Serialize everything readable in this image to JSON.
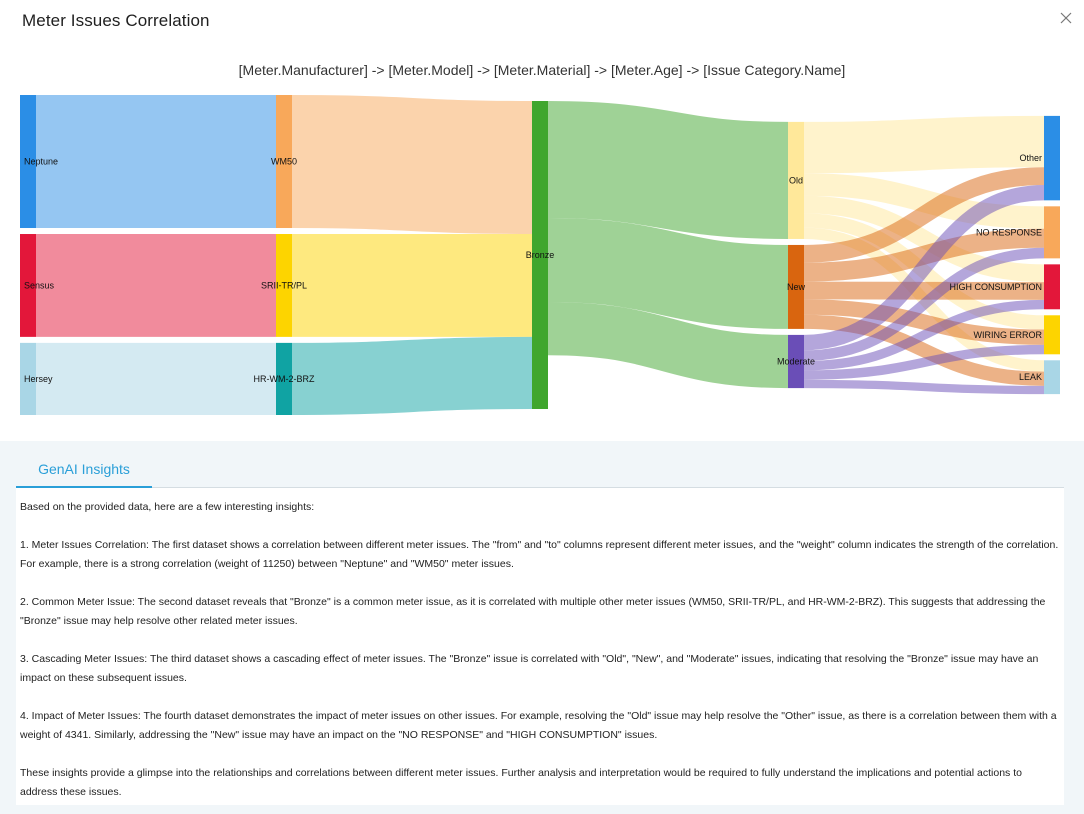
{
  "dialog": {
    "title": "Meter Issues Correlation"
  },
  "chart": {
    "path_title": "[Meter.Manufacturer] -> [Meter.Model] -> [Meter.Material] -> [Meter.Age] -> [Issue Category.Name]"
  },
  "chart_data": {
    "type": "sankey",
    "nodes": [
      {
        "id": "Neptune",
        "label": "Neptune",
        "color": "#2b8ee6"
      },
      {
        "id": "Sensus",
        "label": "Sensus",
        "color": "#e3173a"
      },
      {
        "id": "Hersey",
        "label": "Hersey",
        "color": "#a9d6e6"
      },
      {
        "id": "WM50",
        "label": "WM50",
        "color": "#f8a85a"
      },
      {
        "id": "SRII-TR/PL",
        "label": "SRII-TR/PL",
        "color": "#fdd400"
      },
      {
        "id": "HR-WM-2-BRZ",
        "label": "HR-WM-2-BRZ",
        "color": "#10a3a3"
      },
      {
        "id": "Bronze",
        "label": "Bronze",
        "color": "#40a62e"
      },
      {
        "id": "Old",
        "label": "Old",
        "color": "#ffe89a"
      },
      {
        "id": "New",
        "label": "New",
        "color": "#d9650f"
      },
      {
        "id": "Moderate",
        "label": "Moderate",
        "color": "#6a4eb7"
      },
      {
        "id": "Other",
        "label": "Other",
        "color": "#2b8ee6"
      },
      {
        "id": "NO RESPONSE",
        "label": "NO RESPONSE",
        "color": "#f8a85a"
      },
      {
        "id": "HIGH CONSUMPTION",
        "label": "HIGH CONSUMPTION",
        "color": "#e3173a"
      },
      {
        "id": "WIRING ERROR",
        "label": "WIRING ERROR",
        "color": "#fdd400"
      },
      {
        "id": "LEAK",
        "label": "LEAK",
        "color": "#a9d6e6"
      }
    ],
    "links": [
      {
        "from": "Neptune",
        "to": "WM50",
        "weight": 11250
      },
      {
        "from": "Sensus",
        "to": "SRII-TR/PL",
        "weight": 8700
      },
      {
        "from": "Hersey",
        "to": "HR-WM-2-BRZ",
        "weight": 6100
      },
      {
        "from": "WM50",
        "to": "Bronze",
        "weight": 11250
      },
      {
        "from": "SRII-TR/PL",
        "to": "Bronze",
        "weight": 8700
      },
      {
        "from": "HR-WM-2-BRZ",
        "to": "Bronze",
        "weight": 6100
      },
      {
        "from": "Bronze",
        "to": "Old",
        "weight": 9900
      },
      {
        "from": "Bronze",
        "to": "New",
        "weight": 7100
      },
      {
        "from": "Bronze",
        "to": "Moderate",
        "weight": 4500
      },
      {
        "from": "Old",
        "to": "Other",
        "weight": 4341
      },
      {
        "from": "Old",
        "to": "NO RESPONSE",
        "weight": 1900
      },
      {
        "from": "Old",
        "to": "HIGH CONSUMPTION",
        "weight": 1500
      },
      {
        "from": "Old",
        "to": "WIRING ERROR",
        "weight": 1200
      },
      {
        "from": "Old",
        "to": "LEAK",
        "weight": 959
      },
      {
        "from": "New",
        "to": "Other",
        "weight": 1500
      },
      {
        "from": "New",
        "to": "NO RESPONSE",
        "weight": 1600
      },
      {
        "from": "New",
        "to": "HIGH CONSUMPTION",
        "weight": 1500
      },
      {
        "from": "New",
        "to": "WIRING ERROR",
        "weight": 1300
      },
      {
        "from": "New",
        "to": "LEAK",
        "weight": 1200
      },
      {
        "from": "Moderate",
        "to": "Other",
        "weight": 1300
      },
      {
        "from": "Moderate",
        "to": "NO RESPONSE",
        "weight": 900
      },
      {
        "from": "Moderate",
        "to": "HIGH CONSUMPTION",
        "weight": 800
      },
      {
        "from": "Moderate",
        "to": "WIRING ERROR",
        "weight": 800
      },
      {
        "from": "Moderate",
        "to": "LEAK",
        "weight": 700
      }
    ]
  },
  "insights": {
    "tab_label": "GenAI Insights",
    "paragraphs": [
      "Based on the provided data, here are a few interesting insights:",
      "1. Meter Issues Correlation: The first dataset shows a correlation between different meter issues. The \"from\" and \"to\" columns represent different meter issues, and the \"weight\" column indicates the strength of the correlation. For example, there is a strong correlation (weight of 11250) between \"Neptune\" and \"WM50\" meter issues.",
      "2. Common Meter Issue: The second dataset reveals that \"Bronze\" is a common meter issue, as it is correlated with multiple other meter issues (WM50, SRII-TR/PL, and HR-WM-2-BRZ). This suggests that addressing the \"Bronze\" issue may help resolve other related meter issues.",
      "3. Cascading Meter Issues: The third dataset shows a cascading effect of meter issues. The \"Bronze\" issue is correlated with \"Old\", \"New\", and \"Moderate\" issues, indicating that resolving the \"Bronze\" issue may have an impact on these subsequent issues.",
      "4. Impact of Meter Issues: The fourth dataset demonstrates the impact of meter issues on other issues. For example, resolving the \"Old\" issue may help resolve the \"Other\" issue, as there is a correlation between them with a weight of 4341. Similarly, addressing the \"New\" issue may have an impact on the \"NO RESPONSE\" and \"HIGH CONSUMPTION\" issues.",
      "These insights provide a glimpse into the relationships and correlations between different meter issues. Further analysis and interpretation would be required to fully understand the implications and potential actions to address these issues."
    ]
  }
}
